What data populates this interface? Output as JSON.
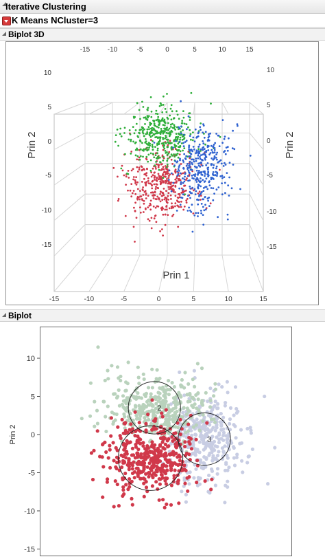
{
  "report": {
    "title": "Iterative Clustering",
    "kmeans_title": "K Means NCluster=3",
    "biplot3d_title": "Biplot 3D",
    "biplot_title": "Biplot"
  },
  "colors": {
    "cluster1": "#d0384a",
    "cluster2": "#2fae3a",
    "cluster3": "#2f62d0",
    "cluster1_biplot": "#d0384a",
    "cluster2_biplot": "#b9d2bc",
    "cluster3_biplot": "#c8cde3"
  },
  "chart_data": [
    {
      "type": "scatter",
      "title": "Biplot 3D",
      "xlabel": "Prin 1",
      "ylabel": "Prin 2",
      "ylabel_right": "Prin 2",
      "xlim": [
        -15,
        15
      ],
      "ylim": [
        -15,
        10
      ],
      "x_ticks": [
        "-15",
        "-10",
        "-5",
        "0",
        "5",
        "10",
        "15"
      ],
      "y_ticks": [
        "10",
        "5",
        "0",
        "-5",
        "-10",
        "-15"
      ],
      "y_ticks_right": [
        "10",
        "5",
        "0",
        "-5",
        "-10",
        "-15"
      ],
      "back_ticks": [
        "-15",
        "-10",
        "-5",
        "0",
        "5",
        "10",
        "15"
      ],
      "series": [
        {
          "name": "1",
          "color": "#d0384a",
          "center": [
            -2,
            -3
          ],
          "spread": [
            4.2,
            3.2
          ],
          "n": 420
        },
        {
          "name": "2",
          "color": "#2fae3a",
          "center": [
            -2,
            4
          ],
          "spread": [
            4.2,
            3.0
          ],
          "n": 400
        },
        {
          "name": "3",
          "color": "#2f62d0",
          "center": [
            5,
            -0.5
          ],
          "spread": [
            3.5,
            4.0
          ],
          "n": 380
        }
      ]
    },
    {
      "type": "scatter",
      "title": "Biplot",
      "xlabel": "",
      "ylabel": "Prin 2",
      "xlim": [
        -15,
        15
      ],
      "ylim": [
        -15,
        12
      ],
      "y_ticks": [
        "10",
        "5",
        "0",
        "-5",
        "-10",
        "-15"
      ],
      "series": [
        {
          "name": "1",
          "color": "#d0384a",
          "center": [
            -2,
            -3
          ],
          "spread": [
            4.2,
            3.2
          ],
          "n": 420,
          "circle_label": "",
          "circle_radius": 4.2
        },
        {
          "name": "2",
          "color": "#b9d2bc",
          "center": [
            -1.5,
            3.6
          ],
          "spread": [
            4.2,
            3.0
          ],
          "n": 400,
          "circle_label": "2",
          "circle_radius": 3.4
        },
        {
          "name": "3",
          "color": "#c8cde3",
          "center": [
            5,
            -0.5
          ],
          "spread": [
            3.5,
            4.0
          ],
          "n": 380,
          "circle_label": "3",
          "circle_radius": 3.4
        }
      ]
    }
  ]
}
